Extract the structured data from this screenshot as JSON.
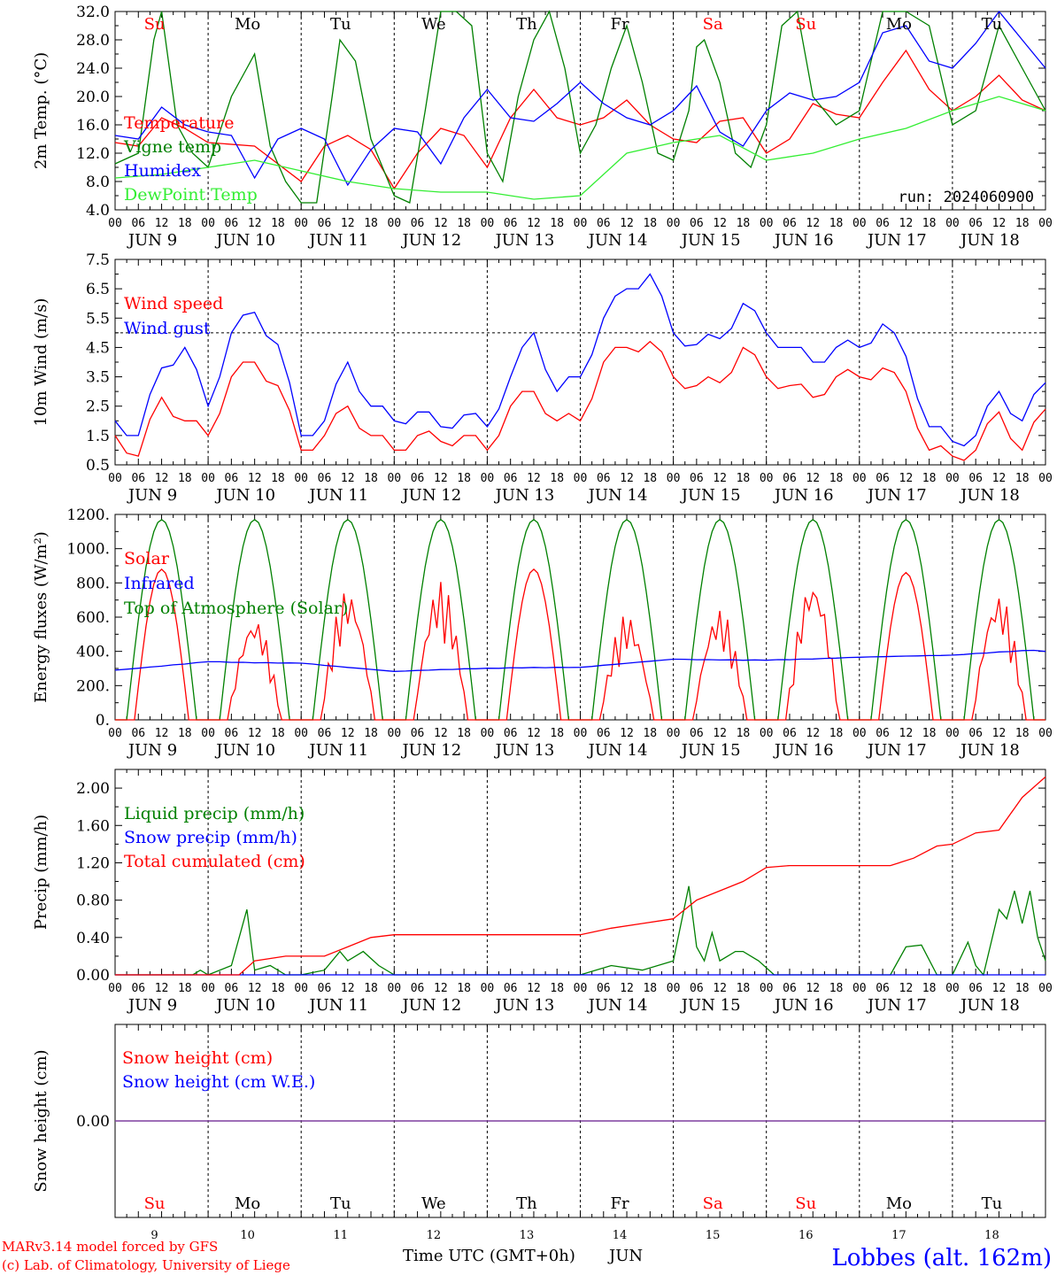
{
  "meta": {
    "run": "run: 2024060900",
    "footer_left_1": "MARv3.14 model forced by GFS",
    "footer_left_2": "(c) Lab. of Climatology, University of Liege",
    "footer_center": "Time UTC (GMT+0h)",
    "footer_month": "JUN",
    "station": "Lobbes (alt. 162m)"
  },
  "colors": {
    "red": "#ff0000",
    "green": "#008000",
    "blue": "#0000ff",
    "lightgreen": "#33ee33",
    "purple": "#7f3f9f"
  },
  "days": [
    {
      "abbr": "Su",
      "dom": "9",
      "weekend": true
    },
    {
      "abbr": "Mo",
      "dom": "10",
      "weekend": false
    },
    {
      "abbr": "Tu",
      "dom": "11",
      "weekend": false
    },
    {
      "abbr": "We",
      "dom": "12",
      "weekend": false
    },
    {
      "abbr": "Th",
      "dom": "13",
      "weekend": false
    },
    {
      "abbr": "Fr",
      "dom": "14",
      "weekend": false
    },
    {
      "abbr": "Sa",
      "dom": "15",
      "weekend": true
    },
    {
      "abbr": "Su",
      "dom": "16",
      "weekend": true
    },
    {
      "abbr": "Mo",
      "dom": "17",
      "weekend": false
    },
    {
      "abbr": "Tu",
      "dom": "18",
      "weekend": false
    }
  ],
  "date_labels": [
    "JUN  9",
    "JUN 10",
    "JUN 11",
    "JUN 12",
    "JUN 13",
    "JUN 14",
    "JUN 15",
    "JUN 16",
    "JUN 17",
    "JUN 18"
  ],
  "hour_ticks": [
    "00",
    "06",
    "12",
    "18"
  ],
  "chart_data": [
    {
      "type": "line",
      "ylabel": "2m Temp. (°C)",
      "ylim": [
        4,
        32
      ],
      "yticks": [
        "4.0",
        "8.0",
        "12.0",
        "16.0",
        "20.0",
        "24.0",
        "28.0",
        "32.0"
      ],
      "x_unit": "hours since JUN 9 00 UTC",
      "series": [
        {
          "name": "Temperature",
          "color": "red",
          "x": [
            0,
            6,
            12,
            18,
            24,
            36,
            48,
            54,
            60,
            66,
            72,
            78,
            84,
            90,
            96,
            102,
            108,
            114,
            120,
            126,
            132,
            138,
            144,
            150,
            156,
            162,
            168,
            174,
            180,
            186,
            192,
            198,
            204,
            210,
            216,
            222,
            228,
            234,
            240
          ],
          "y": [
            13.5,
            13,
            17,
            15.5,
            13.5,
            13,
            8,
            13,
            14.5,
            12.5,
            7,
            12,
            15.5,
            14.5,
            10,
            17,
            21,
            17,
            16,
            17,
            19.5,
            16,
            14,
            13.5,
            16.5,
            17,
            12,
            14,
            19,
            17.5,
            17,
            22,
            26.5,
            21,
            18,
            20,
            23,
            19.5,
            18
          ]
        },
        {
          "name": "Vigne temp",
          "color": "green",
          "x": [
            0,
            6,
            10,
            12,
            16,
            20,
            24,
            30,
            34,
            36,
            40,
            44,
            48,
            52,
            56,
            58,
            62,
            66,
            72,
            76,
            80,
            84,
            88,
            92,
            96,
            100,
            104,
            108,
            112,
            116,
            120,
            124,
            126,
            128,
            132,
            136,
            140,
            144,
            148,
            150,
            152,
            156,
            160,
            164,
            168,
            172,
            176,
            180,
            186,
            192,
            198,
            204,
            210,
            216,
            222,
            228,
            234,
            240
          ],
          "y": [
            10.5,
            12,
            28,
            32,
            16,
            12,
            10,
            20,
            24,
            26,
            13,
            8,
            5,
            5,
            20,
            28,
            25,
            14,
            6,
            5,
            18,
            32,
            34,
            30,
            12,
            8,
            20,
            28,
            32,
            24,
            12,
            16,
            20,
            24,
            30,
            22,
            12,
            11,
            18,
            27,
            28,
            22,
            12,
            10,
            16,
            30,
            36,
            20,
            16,
            18,
            32,
            36,
            30,
            16,
            18,
            30,
            24,
            18
          ]
        },
        {
          "name": "Humidex",
          "color": "blue",
          "x": [
            0,
            6,
            12,
            18,
            24,
            30,
            36,
            42,
            48,
            54,
            60,
            66,
            72,
            78,
            84,
            90,
            96,
            102,
            108,
            114,
            120,
            126,
            132,
            138,
            144,
            150,
            156,
            162,
            168,
            174,
            180,
            186,
            192,
            198,
            204,
            210,
            216,
            222,
            228,
            234,
            240
          ],
          "y": [
            14.5,
            14,
            18.5,
            16,
            15,
            14.5,
            8.5,
            14,
            15.5,
            14,
            7.5,
            12.5,
            15.5,
            15,
            10.5,
            17,
            21,
            17,
            16.5,
            19,
            22,
            19,
            17,
            16,
            18,
            21.5,
            15,
            13,
            18,
            20.5,
            19.5,
            20,
            22,
            29,
            30,
            25,
            24,
            27.5,
            32,
            28,
            24
          ]
        },
        {
          "name": "DewPoint Temp",
          "color": "lightgreen",
          "x": [
            0,
            12,
            24,
            36,
            48,
            60,
            72,
            84,
            96,
            108,
            120,
            132,
            144,
            156,
            168,
            180,
            192,
            204,
            216,
            228,
            240
          ],
          "y": [
            8.5,
            9,
            10,
            11,
            9.5,
            8,
            7,
            6.5,
            6.5,
            5.5,
            6,
            12,
            13.5,
            14.5,
            11,
            12,
            14,
            15.5,
            18,
            20,
            18
          ]
        }
      ]
    },
    {
      "type": "line",
      "ylabel": "10m Wind (m/s)",
      "ylim": [
        0.5,
        7.5
      ],
      "yticks": [
        "0.5",
        "1.5",
        "2.5",
        "3.5",
        "4.5",
        "5.5",
        "6.5",
        "7.5"
      ],
      "ref_line": 5,
      "series": [
        {
          "name": "Wind speed",
          "color": "red",
          "x": [
            0,
            6,
            12,
            18,
            24,
            30,
            36,
            42,
            48,
            54,
            60,
            66,
            72,
            78,
            84,
            90,
            96,
            102,
            108,
            114,
            120,
            126,
            132,
            138,
            144,
            150,
            156,
            162,
            168,
            174,
            180,
            186,
            192,
            198,
            204,
            210,
            216,
            222,
            228,
            234,
            240
          ],
          "y": [
            1.5,
            0.8,
            2.8,
            2.0,
            1.5,
            3.5,
            4.0,
            3.2,
            1.0,
            1.5,
            2.5,
            1.5,
            1.0,
            1.5,
            1.3,
            1.5,
            1.0,
            2.5,
            3.0,
            2.0,
            2.0,
            4.0,
            4.5,
            4.7,
            3.5,
            3.2,
            3.3,
            4.5,
            3.5,
            3.2,
            2.8,
            3.5,
            3.5,
            3.8,
            3.0,
            1.0,
            0.8,
            1.0,
            2.3,
            1.0,
            2.4
          ]
        },
        {
          "name": "Wind gust",
          "color": "blue",
          "x": [
            0,
            6,
            12,
            18,
            24,
            30,
            36,
            42,
            48,
            54,
            60,
            66,
            72,
            78,
            84,
            90,
            96,
            102,
            108,
            114,
            120,
            126,
            132,
            138,
            144,
            150,
            156,
            162,
            168,
            174,
            180,
            186,
            192,
            198,
            204,
            210,
            216,
            222,
            228,
            234,
            240
          ],
          "y": [
            2.0,
            1.5,
            3.8,
            4.5,
            2.5,
            5.0,
            5.7,
            4.6,
            1.5,
            2.0,
            4.0,
            2.5,
            2.0,
            2.3,
            1.8,
            2.2,
            1.8,
            3.5,
            5.0,
            3.0,
            3.5,
            5.5,
            6.5,
            7.0,
            5.0,
            4.6,
            4.8,
            6.0,
            5.0,
            4.5,
            4.0,
            4.5,
            4.5,
            5.3,
            4.2,
            1.8,
            1.3,
            1.5,
            3.0,
            2.0,
            3.3
          ]
        }
      ]
    },
    {
      "type": "line",
      "ylabel": "Energy fluxes (W/m²)",
      "ylim": [
        0,
        1200
      ],
      "yticks": [
        "0.",
        "200.",
        "400.",
        "600.",
        "800.",
        "1000.",
        "1200."
      ],
      "series": [
        {
          "name": "Solar",
          "color": "red",
          "peaks": [
            880,
            600,
            770,
            810,
            880,
            620,
            650,
            830,
            860,
            740
          ]
        },
        {
          "name": "Infrared",
          "color": "blue",
          "x": [
            0,
            24,
            48,
            72,
            96,
            120,
            144,
            168,
            192,
            216,
            240
          ],
          "y": [
            290,
            350,
            340,
            280,
            290,
            300,
            360,
            360,
            370,
            370,
            400
          ]
        },
        {
          "name": "Top of Atmosphere (Solar)",
          "color": "green",
          "peak": 1170
        }
      ]
    },
    {
      "type": "line",
      "ylabel": "Precip (mm/h)",
      "ylim": [
        0,
        2.2
      ],
      "yticks": [
        "0.00",
        "0.40",
        "0.80",
        "1.20",
        "1.60",
        "2.00"
      ],
      "series": [
        {
          "name": "Liquid precip (mm/h)",
          "color": "green",
          "x": [
            0,
            20,
            22,
            24,
            30,
            34,
            36,
            40,
            44,
            48,
            54,
            58,
            60,
            64,
            68,
            72,
            96,
            120,
            128,
            136,
            144,
            148,
            150,
            152,
            154,
            156,
            158,
            160,
            162,
            166,
            170,
            174,
            176,
            180,
            200,
            204,
            208,
            212,
            216,
            220,
            222,
            224,
            228,
            230,
            232,
            234,
            236,
            238,
            240
          ],
          "y": [
            0,
            0,
            0.05,
            0,
            0.1,
            0.7,
            0.05,
            0.1,
            0,
            0,
            0.05,
            0.25,
            0.15,
            0.25,
            0.1,
            0,
            0,
            0,
            0.1,
            0.05,
            0.15,
            0.95,
            0.3,
            0.15,
            0.45,
            0.15,
            0.2,
            0.25,
            0.25,
            0.15,
            0,
            0,
            0,
            0,
            0,
            0.3,
            0.32,
            0,
            0,
            0.35,
            0.1,
            0,
            0.7,
            0.6,
            0.9,
            0.55,
            0.9,
            0.4,
            0.15
          ]
        },
        {
          "name": "Snow precip (mm/h)",
          "color": "blue",
          "x": [
            0,
            240
          ],
          "y": [
            0,
            0
          ]
        },
        {
          "name": "Total cumulated (cm)",
          "color": "red",
          "x": [
            0,
            32,
            36,
            44,
            54,
            60,
            66,
            72,
            96,
            120,
            128,
            136,
            144,
            150,
            156,
            162,
            168,
            174,
            180,
            200,
            206,
            212,
            216,
            222,
            228,
            234,
            240
          ],
          "y": [
            0,
            0,
            0.15,
            0.2,
            0.2,
            0.3,
            0.4,
            0.43,
            0.43,
            0.43,
            0.5,
            0.55,
            0.6,
            0.8,
            0.9,
            1.0,
            1.15,
            1.17,
            1.17,
            1.17,
            1.25,
            1.38,
            1.4,
            1.52,
            1.55,
            1.9,
            2.12
          ]
        }
      ]
    },
    {
      "type": "line",
      "ylabel": "Snow height (cm)",
      "ylim": [
        -1,
        1
      ],
      "yticks": [
        "0.00"
      ],
      "series": [
        {
          "name": "Snow height (cm)",
          "color": "red",
          "x": [
            0,
            240
          ],
          "y": [
            0,
            0
          ]
        },
        {
          "name": "Snow height (cm W.E.)",
          "color": "blue",
          "x": [
            0,
            240
          ],
          "y": [
            0,
            0
          ]
        }
      ]
    }
  ]
}
